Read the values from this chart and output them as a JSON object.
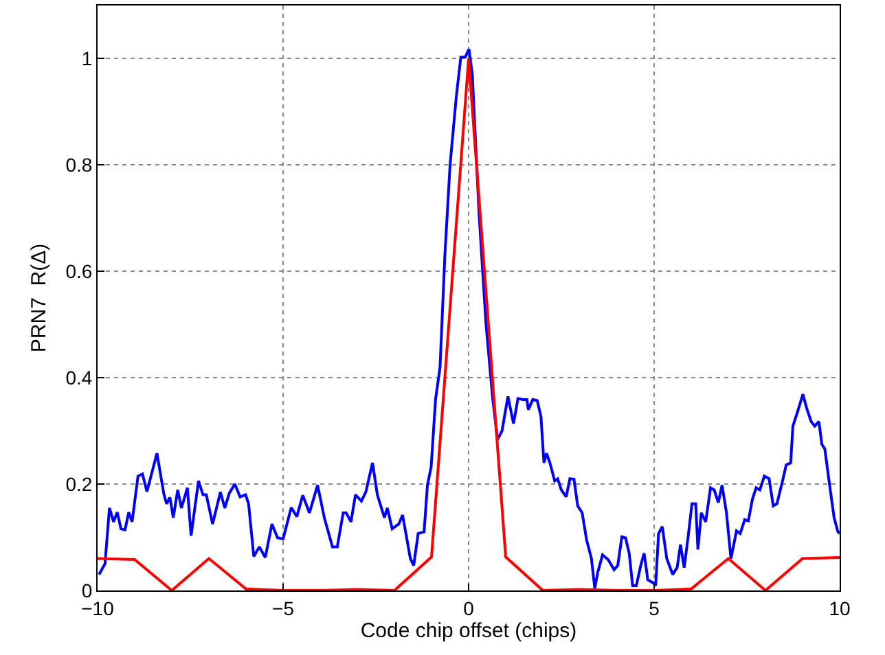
{
  "chart_data": {
    "type": "line",
    "xlabel": "Code chip offset (chips)",
    "ylabel": "PRN7  R(Δ)",
    "xlim": [
      -10,
      10
    ],
    "xticks": [
      {
        "value": -10,
        "label": "−10"
      },
      {
        "value": -5,
        "label": "−5"
      },
      0,
      5,
      10
    ],
    "ylim": [
      0,
      1.1
    ],
    "yticks": [
      0,
      0.2,
      0.4,
      0.6,
      0.8,
      1
    ],
    "grid": true,
    "line_style": "solid",
    "series": [
      {
        "color": "#0000ff",
        "x": [
          -9.96,
          -9.8,
          -9.68,
          -9.57,
          -9.47,
          -9.37,
          -9.26,
          -9.16,
          -9.07,
          -8.91,
          -8.79,
          -8.67,
          -8.4,
          -8.21,
          -8.14,
          -8.05,
          -7.96,
          -7.84,
          -7.74,
          -7.58,
          -7.48,
          -7.28,
          -7.16,
          -7.07,
          -6.9,
          -6.69,
          -6.57,
          -6.45,
          -6.3,
          -6.16,
          -6.01,
          -5.93,
          -5.79,
          -5.64,
          -5.48,
          -5.3,
          -5.15,
          -5,
          -4.78,
          -4.63,
          -4.47,
          -4.29,
          -4.07,
          -3.89,
          -3.67,
          -3.54,
          -3.38,
          -3.3,
          -3.17,
          -3.05,
          -2.89,
          -2.77,
          -2.59,
          -2.46,
          -2.27,
          -2.19,
          -2.06,
          -1.88,
          -1.78,
          -1.69,
          -1.57,
          -1.48,
          -1.36,
          -1.2,
          -1.11,
          -1.01,
          -0.89,
          -0.77,
          -0.64,
          -0.5,
          -0.33,
          -0.21,
          -0.09,
          0.01,
          0.1,
          0.28,
          0.47,
          0.65,
          0.78,
          0.9,
          1.06,
          1.21,
          1.33,
          1.46,
          1.57,
          1.61,
          1.73,
          1.85,
          1.95,
          2.03,
          2.1,
          2.19,
          2.32,
          2.4,
          2.5,
          2.63,
          2.73,
          2.84,
          2.94,
          3.06,
          3.18,
          3.31,
          3.4,
          3.48,
          3.61,
          3.77,
          3.92,
          4.02,
          4.13,
          4.23,
          4.33,
          4.42,
          4.52,
          4.64,
          4.73,
          4.83,
          4.98,
          5.04,
          5.12,
          5.22,
          5.34,
          5.5,
          5.62,
          5.71,
          5.81,
          5.92,
          6.02,
          6.12,
          6.18,
          6.27,
          6.39,
          6.52,
          6.62,
          6.73,
          6.83,
          6.95,
          7.07,
          7.22,
          7.32,
          7.44,
          7.54,
          7.65,
          7.75,
          7.85,
          7.97,
          8.1,
          8.21,
          8.31,
          8.46,
          8.56,
          8.68,
          8.74,
          8.86,
          9.01,
          9.11,
          9.23,
          9.33,
          9.44,
          9.52,
          9.6,
          9.73,
          9.85,
          9.95,
          10
        ],
        "values": [
          0.03,
          0.05,
          0.155,
          0.129,
          0.147,
          0.116,
          0.114,
          0.147,
          0.129,
          0.215,
          0.219,
          0.186,
          0.258,
          0.18,
          0.163,
          0.175,
          0.137,
          0.189,
          0.155,
          0.193,
          0.103,
          0.206,
          0.18,
          0.18,
          0.125,
          0.185,
          0.155,
          0.183,
          0.2,
          0.176,
          0.18,
          0.163,
          0.064,
          0.082,
          0.062,
          0.125,
          0.099,
          0.097,
          0.156,
          0.139,
          0.179,
          0.146,
          0.198,
          0.137,
          0.082,
          0.082,
          0.146,
          0.146,
          0.129,
          0.18,
          0.168,
          0.185,
          0.24,
          0.18,
          0.137,
          0.155,
          0.116,
          0.125,
          0.142,
          0.107,
          0.06,
          0.047,
          0.107,
          0.11,
          0.198,
          0.232,
          0.36,
          0.42,
          0.63,
          0.8,
          0.93,
          1.003,
          1.003,
          1.018,
          0.97,
          0.71,
          0.5,
          0.36,
          0.284,
          0.3,
          0.365,
          0.314,
          0.361,
          0.359,
          0.359,
          0.34,
          0.359,
          0.357,
          0.327,
          0.24,
          0.258,
          0.24,
          0.206,
          0.21,
          0.189,
          0.176,
          0.21,
          0.209,
          0.159,
          0.146,
          0.095,
          0.06,
          0.004,
          0.034,
          0.067,
          0.057,
          0.039,
          0.047,
          0.101,
          0.099,
          0.069,
          0.009,
          0.009,
          0.047,
          0.07,
          0.02,
          0.014,
          0.009,
          0.107,
          0.12,
          0.06,
          0.03,
          0.043,
          0.086,
          0.043,
          0.103,
          0.163,
          0.163,
          0.077,
          0.146,
          0.129,
          0.193,
          0.189,
          0.165,
          0.198,
          0.146,
          0.06,
          0.112,
          0.107,
          0.133,
          0.131,
          0.172,
          0.193,
          0.189,
          0.215,
          0.21,
          0.159,
          0.163,
          0.206,
          0.236,
          0.24,
          0.309,
          0.335,
          0.369,
          0.343,
          0.318,
          0.309,
          0.318,
          0.275,
          0.266,
          0.198,
          0.137,
          0.111,
          0.107
        ]
      },
      {
        "color": "#ff0000",
        "x": [
          -10,
          -9,
          -8,
          -7,
          -6,
          -5,
          -4,
          -3,
          -2,
          -1,
          0,
          1,
          2,
          3,
          4,
          5,
          6,
          7,
          8,
          9,
          10
        ],
        "values": [
          0.06,
          0.058,
          0,
          0.06,
          0.003,
          0,
          0,
          0.002,
          0,
          0.063,
          1,
          0.063,
          0,
          0.002,
          0,
          0,
          0.003,
          0.06,
          0,
          0.06,
          0.062
        ]
      }
    ]
  }
}
